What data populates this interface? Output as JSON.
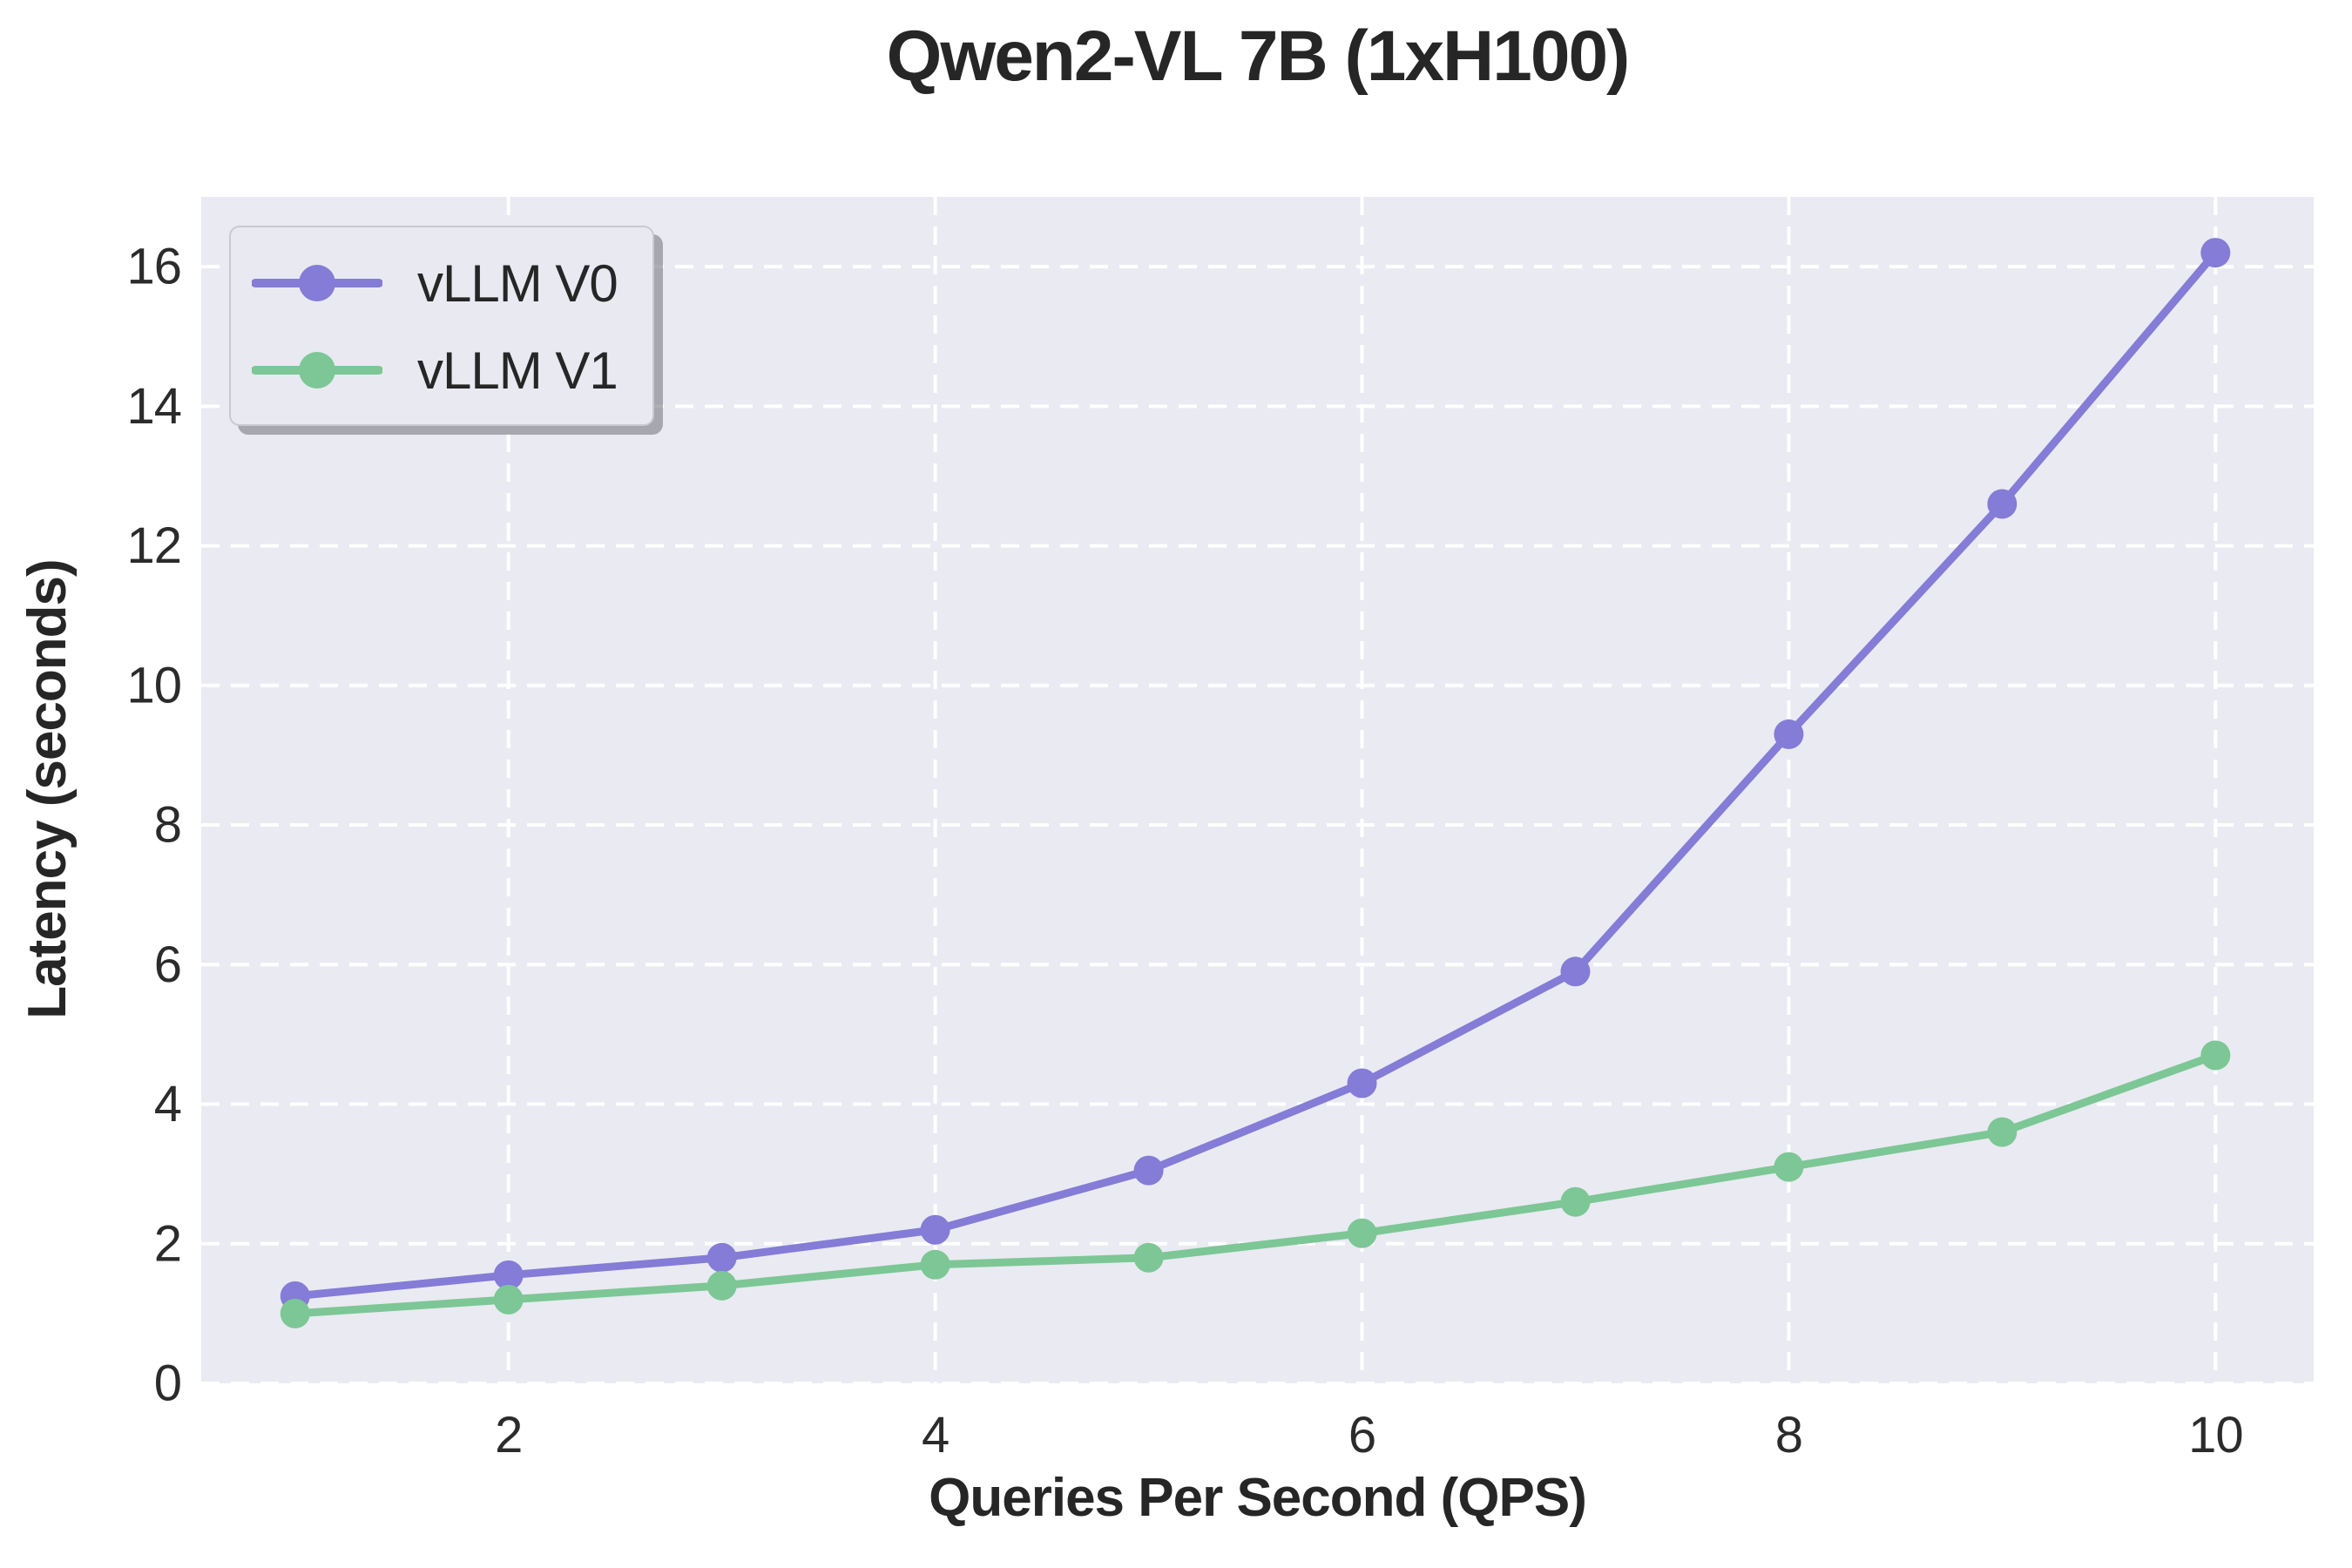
{
  "title": "Qwen2-VL 7B (1xH100)",
  "axes": {
    "xlabel": "Queries Per Second (QPS)",
    "ylabel": "Latency (seconds)"
  },
  "legend": {
    "items": [
      {
        "label": "vLLM V0",
        "color": "#847cd6"
      },
      {
        "label": "vLLM V1",
        "color": "#7cc795"
      }
    ]
  },
  "colors": {
    "figure_bg": "#ffffff",
    "plot_bg": "#eaeaf2",
    "grid": "#ffffff",
    "text": "#262626",
    "tick_text": "#2b2b2b"
  },
  "chart_data": {
    "type": "line",
    "title": "Qwen2-VL 7B (1xH100)",
    "xlabel": "Queries Per Second (QPS)",
    "ylabel": "Latency (seconds)",
    "x": [
      1,
      2,
      3,
      4,
      5,
      6,
      7,
      8,
      9,
      10
    ],
    "series": [
      {
        "name": "vLLM V0",
        "color": "#847cd6",
        "values": [
          1.25,
          1.55,
          1.8,
          2.2,
          3.05,
          4.3,
          5.9,
          9.3,
          12.6,
          16.2
        ]
      },
      {
        "name": "vLLM V1",
        "color": "#7cc795",
        "values": [
          1.0,
          1.2,
          1.4,
          1.7,
          1.8,
          2.15,
          2.6,
          3.1,
          3.6,
          4.7
        ]
      }
    ],
    "xticks": [
      2,
      4,
      6,
      8,
      10
    ],
    "yticks": [
      0,
      2,
      4,
      6,
      8,
      10,
      12,
      14,
      16
    ],
    "xlim": [
      0.56,
      10.46
    ],
    "ylim": [
      0,
      17.0
    ],
    "grid": true,
    "grid_style": "dashed",
    "legend_position": "upper left",
    "marker": "circle",
    "marker_radius": 17,
    "line_width": 9
  }
}
